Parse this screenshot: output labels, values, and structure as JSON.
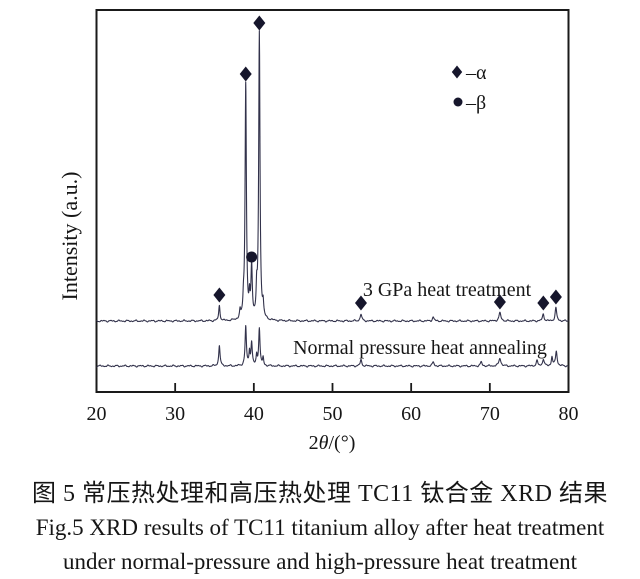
{
  "figure": {
    "caption_line1": "图 5  常压热处理和高压热处理 TC11 钛合金 XRD 结果",
    "caption_line2": "Fig.5 XRD results of TC11 titanium alloy after heat treatment",
    "caption_line3": "under normal-pressure and high-pressure heat treatment"
  },
  "chart_data": {
    "type": "line",
    "title": "",
    "xlabel": "2θ/(°)",
    "ylabel": "Intensity (a.u.)",
    "x_range": [
      20,
      80
    ],
    "x_ticks": [
      20,
      30,
      40,
      50,
      60,
      70,
      80
    ],
    "y_axis": "arbitrary-units-no-ticks",
    "grid": false,
    "background": "#ffffff",
    "line_color": "#32324b",
    "marker_color": "#16162c",
    "text_color": "#161616",
    "legend": {
      "position": "top-right",
      "entries": [
        {
          "marker": "diamond",
          "label": "–α",
          "phase": "alpha"
        },
        {
          "marker": "circle",
          "label": "–β",
          "phase": "beta"
        }
      ]
    },
    "annotations": {
      "alpha_marker_2theta": [
        35.62,
        38.97,
        40.7,
        53.62,
        71.28,
        76.8,
        78.4
      ],
      "beta_marker_2theta": [
        39.72
      ]
    },
    "series": [
      {
        "name": "3 GPa heat treatment",
        "peaks_2theta_height_width": [
          [
            35.62,
            15,
            0.1
          ],
          [
            38.25,
            8,
            0.08
          ],
          [
            38.68,
            14,
            0.08
          ],
          [
            38.97,
            236,
            0.1
          ],
          [
            39.45,
            18,
            0.08
          ],
          [
            39.72,
            52,
            0.1
          ],
          [
            40.36,
            24,
            0.08
          ],
          [
            40.7,
            287,
            0.1
          ],
          [
            41.18,
            13,
            0.08
          ],
          [
            53.62,
            7,
            0.12
          ],
          [
            62.8,
            4,
            0.12
          ],
          [
            71.28,
            8,
            0.15
          ],
          [
            76.8,
            7,
            0.12
          ],
          [
            78.4,
            13,
            0.12
          ]
        ]
      },
      {
        "name": "Normal pressure heat annealing",
        "peaks_2theta_height_width": [
          [
            35.62,
            21,
            0.1
          ],
          [
            38.97,
            39,
            0.1
          ],
          [
            39.45,
            14,
            0.08
          ],
          [
            39.72,
            23,
            0.1
          ],
          [
            40.36,
            10,
            0.08
          ],
          [
            40.7,
            38,
            0.1
          ],
          [
            41.18,
            8,
            0.08
          ],
          [
            53.62,
            6,
            0.12
          ],
          [
            62.8,
            4,
            0.12
          ],
          [
            68.9,
            4,
            0.12
          ],
          [
            71.28,
            8,
            0.15
          ],
          [
            76.0,
            5,
            0.12
          ],
          [
            76.8,
            7,
            0.12
          ],
          [
            77.9,
            9,
            0.1
          ],
          [
            78.45,
            15,
            0.12
          ]
        ]
      }
    ]
  }
}
